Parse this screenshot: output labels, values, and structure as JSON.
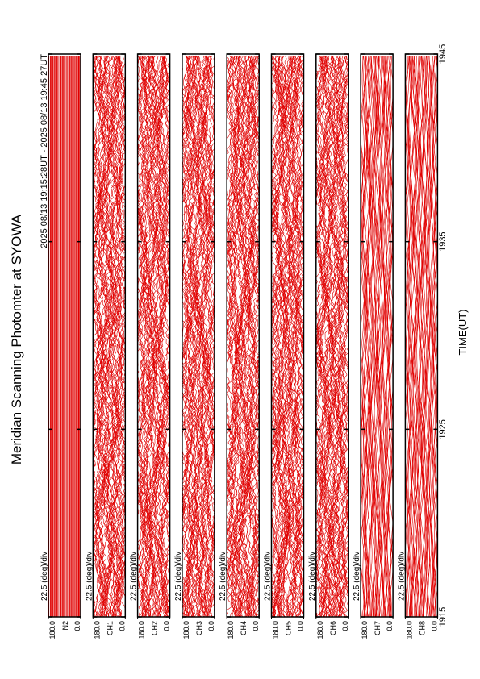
{
  "chart_data": {
    "type": "line",
    "title": "Meridian Scanning Photomter at SYOWA",
    "subtitle": "2025 08/13 19:15:28UT - 2025 08/13 19:45:27UT",
    "x_label": "TIME(UT)",
    "xlim": [
      1915,
      1945
    ],
    "xticks": [
      1915,
      1925,
      1935,
      1945
    ],
    "ylim": [
      0,
      180
    ],
    "yticks": [
      {
        "value": 0,
        "label": "0.0"
      },
      {
        "value": 180,
        "label": "180.0"
      }
    ],
    "color": "#e00000",
    "panels": [
      {
        "label": "N2",
        "scale": "22.5 (deg)/div"
      },
      {
        "label": "CH1",
        "scale": "22.5 (deg)/div"
      },
      {
        "label": "CH2",
        "scale": "22.5 (deg)/div"
      },
      {
        "label": "CH3",
        "scale": "22.5 (deg)/div"
      },
      {
        "label": "CH4",
        "scale": "22.5 (deg)/div"
      },
      {
        "label": "CH5",
        "scale": "22.5 (deg)/div"
      },
      {
        "label": "CH6",
        "scale": "22.5 (deg)/div"
      },
      {
        "label": "CH7",
        "scale": "22.5 (deg)/div"
      },
      {
        "label": "CH8",
        "scale": "22.5 (deg)/div"
      }
    ]
  }
}
